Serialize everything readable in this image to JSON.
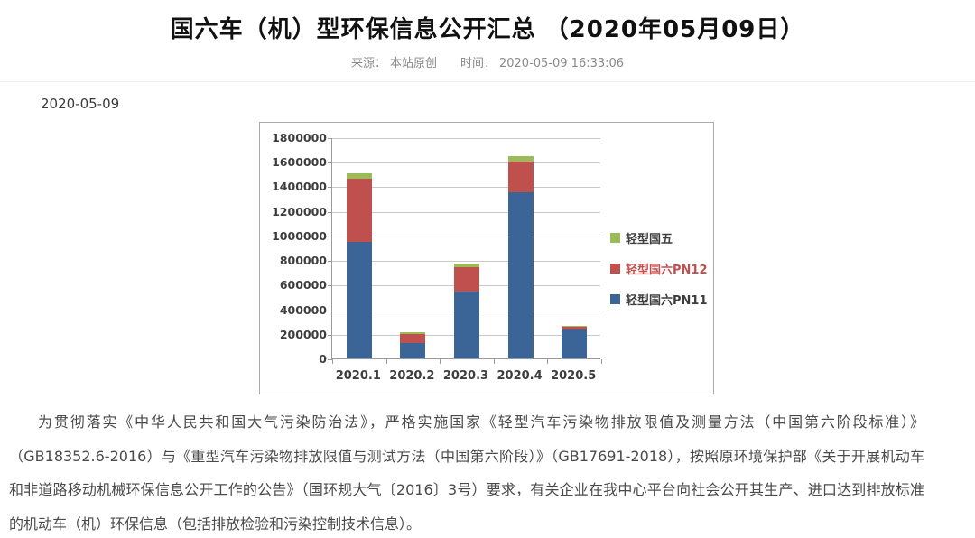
{
  "page": {
    "title": "国六车（机）型环保信息公开汇总 （2020年05月09日）",
    "source_label": "来源：",
    "source_value": "本站原创",
    "time_label": "时间：",
    "time_value": "2020-05-09 16:33:06",
    "date_line": "2020-05-09",
    "body_paragraph": "为贯彻落实《中华人民共和国大气污染防治法》，严格实施国家《轻型汽车污染物排放限值及测量方法（中国第六阶段标准）》（GB18352.6-2016）与《重型汽车污染物排放限值与测试方法（中国第六阶段）》（GB17691-2018），按照原环境保护部《关于开展机动车和非道路移动机械环保信息公开工作的公告》（国环规大气〔2016〕3号）要求，有关企业在我中心平台向社会公开其生产、进口达到排放标准的机动车（机）环保信息（包括排放检验和污染控制技术信息）。"
  },
  "chart_data": {
    "type": "bar",
    "stacked": true,
    "title": "",
    "xlabel": "",
    "ylabel": "",
    "categories": [
      "2020.1",
      "2020.2",
      "2020.3",
      "2020.4",
      "2020.5"
    ],
    "series": [
      {
        "name": "轻型国六PN11",
        "color": "#3A6596",
        "label_color": "#3d3d3d",
        "values": [
          950000,
          125000,
          545000,
          1355000,
          235000
        ]
      },
      {
        "name": "轻型国六PN12",
        "color": "#C0504D",
        "label_color": "#C0504D",
        "values": [
          510000,
          70000,
          195000,
          245000,
          25000
        ]
      },
      {
        "name": "轻型国五",
        "color": "#9BBB59",
        "label_color": "#3d3d3d",
        "values": [
          45000,
          17000,
          30000,
          48000,
          8000
        ]
      }
    ],
    "ylim": [
      0,
      1800000
    ],
    "ytick_step": 200000,
    "grid": true,
    "legend_position": "right",
    "legend_order_top_to_bottom": [
      "轻型国五",
      "轻型国六PN12",
      "轻型国六PN11"
    ]
  },
  "colors": {
    "grid": "#c9c9c9",
    "axis": "#9a9a9a",
    "chart_border": "#ababab",
    "meta_text": "#8a8a8a",
    "body_text": "#4a4a4a"
  }
}
